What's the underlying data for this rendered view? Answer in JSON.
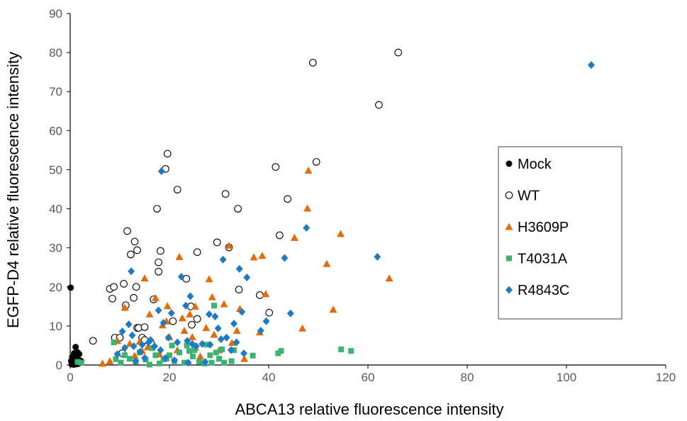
{
  "chart_data": {
    "type": "scatter",
    "xlabel": "ABCA13 relative fluorescence intensity",
    "ylabel": "EGFP-D4 relative fluorescence intensity",
    "xlim": [
      0,
      120
    ],
    "ylim": [
      0,
      90
    ],
    "xticks": [
      "0",
      "20",
      "40",
      "60",
      "80",
      "100",
      "120"
    ],
    "yticks": [
      "0",
      "10",
      "20",
      "30",
      "40",
      "50",
      "60",
      "70",
      "80",
      "90"
    ],
    "grid": false,
    "legend_position": "right",
    "series": [
      {
        "name": "Mock",
        "marker": "filled-circle",
        "color": "#000000",
        "points": [
          [
            0.1,
            19.8
          ],
          [
            0.2,
            1.0
          ],
          [
            0.3,
            0.2
          ],
          [
            0.4,
            2.0
          ],
          [
            0.5,
            0.6
          ],
          [
            0.6,
            1.2
          ],
          [
            0.7,
            0.1
          ],
          [
            0.8,
            3.0
          ],
          [
            0.9,
            0.4
          ],
          [
            1.0,
            1.6
          ],
          [
            1.1,
            4.6
          ],
          [
            1.2,
            0.2
          ],
          [
            1.3,
            2.4
          ],
          [
            1.4,
            0.8
          ],
          [
            1.5,
            3.2
          ],
          [
            1.6,
            0.3
          ],
          [
            1.7,
            1.4
          ],
          [
            1.8,
            2.8
          ],
          [
            2.0,
            0.6
          ],
          [
            2.2,
            1.0
          ]
        ]
      },
      {
        "name": "WT",
        "marker": "open-circle",
        "color": "#000000",
        "points": [
          [
            4.6,
            6.2
          ],
          [
            9.0,
            7.0
          ],
          [
            8.0,
            19.5
          ],
          [
            8.8,
            20.0
          ],
          [
            8.5,
            17.0
          ],
          [
            10.0,
            7.0
          ],
          [
            10.5,
            3.0
          ],
          [
            10.8,
            20.8
          ],
          [
            11.2,
            15.3
          ],
          [
            11.5,
            34.3
          ],
          [
            12.2,
            28.3
          ],
          [
            13.0,
            31.6
          ],
          [
            13.3,
            20.0
          ],
          [
            13.5,
            29.4
          ],
          [
            12.8,
            17.2
          ],
          [
            13.5,
            9.5
          ],
          [
            13.8,
            9.5
          ],
          [
            14.5,
            7.0
          ],
          [
            15.0,
            9.7
          ],
          [
            15.0,
            6.4
          ],
          [
            16.3,
            5.5
          ],
          [
            16.8,
            16.8
          ],
          [
            17.5,
            40.0
          ],
          [
            17.8,
            26.3
          ],
          [
            17.8,
            23.9
          ],
          [
            18.2,
            29.2
          ],
          [
            19.2,
            50.2
          ],
          [
            19.6,
            54.1
          ],
          [
            20.7,
            11.2
          ],
          [
            21.6,
            44.9
          ],
          [
            23.4,
            22.1
          ],
          [
            24.3,
            15.0
          ],
          [
            24.5,
            10.3
          ],
          [
            25.6,
            11.8
          ],
          [
            25.6,
            28.9
          ],
          [
            29.6,
            31.4
          ],
          [
            31.3,
            43.8
          ],
          [
            32.0,
            30.1
          ],
          [
            33.8,
            40.0
          ],
          [
            34.0,
            19.3
          ],
          [
            38.2,
            17.9
          ],
          [
            40.1,
            13.4
          ],
          [
            41.4,
            50.7
          ],
          [
            42.2,
            33.2
          ],
          [
            43.8,
            42.5
          ],
          [
            48.9,
            77.4
          ],
          [
            49.6,
            52.0
          ],
          [
            62.2,
            66.6
          ],
          [
            66.1,
            80.0
          ]
        ]
      },
      {
        "name": "H3609P",
        "marker": "triangle",
        "color": "#E36C09",
        "points": [
          [
            6.5,
            0.4
          ],
          [
            8.0,
            1.0
          ],
          [
            9.5,
            6.2
          ],
          [
            11.0,
            14.7
          ],
          [
            12.0,
            5.5
          ],
          [
            13.0,
            2.4
          ],
          [
            14.0,
            6.0
          ],
          [
            14.5,
            3.6
          ],
          [
            15.0,
            22.2
          ],
          [
            15.6,
            4.6
          ],
          [
            16.0,
            13.0
          ],
          [
            17.2,
            17.2
          ],
          [
            18.0,
            2.8
          ],
          [
            18.6,
            10.2
          ],
          [
            19.4,
            11.2
          ],
          [
            19.6,
            15.1
          ],
          [
            20.0,
            7.2
          ],
          [
            21.6,
            3.8
          ],
          [
            22.0,
            27.7
          ],
          [
            22.6,
            12.0
          ],
          [
            23.0,
            8.8
          ],
          [
            24.1,
            13.0
          ],
          [
            24.6,
            7.2
          ],
          [
            25.2,
            4.5
          ],
          [
            25.2,
            15.0
          ],
          [
            26.2,
            2.2
          ],
          [
            27.4,
            9.5
          ],
          [
            28.0,
            22.0
          ],
          [
            28.6,
            17.4
          ],
          [
            29.0,
            7.8
          ],
          [
            30.0,
            3.8
          ],
          [
            31.0,
            15.6
          ],
          [
            32.0,
            30.6
          ],
          [
            32.6,
            5.7
          ],
          [
            33.6,
            8.8
          ],
          [
            34.2,
            14.4
          ],
          [
            35.1,
            1.6
          ],
          [
            37.0,
            27.6
          ],
          [
            38.2,
            8.4
          ],
          [
            38.7,
            28.0
          ],
          [
            39.4,
            18.2
          ],
          [
            45.2,
            32.6
          ],
          [
            46.8,
            9.4
          ],
          [
            47.8,
            40.1
          ],
          [
            48.0,
            49.8
          ],
          [
            51.7,
            25.9
          ],
          [
            53.0,
            14.2
          ],
          [
            54.5,
            33.6
          ],
          [
            64.3,
            22.2
          ]
        ]
      },
      {
        "name": "T4031A",
        "marker": "square",
        "color": "#3CB371",
        "points": [
          [
            1.5,
            0.8
          ],
          [
            2.2,
            0.6
          ],
          [
            8.8,
            5.8
          ],
          [
            9.2,
            1.5
          ],
          [
            10.2,
            0.6
          ],
          [
            11.0,
            2.5
          ],
          [
            12.0,
            1.6
          ],
          [
            13.2,
            0.8
          ],
          [
            14.0,
            3.2
          ],
          [
            15.2,
            1.4
          ],
          [
            16.0,
            0.1
          ],
          [
            16.5,
            4.3
          ],
          [
            17.2,
            2.5
          ],
          [
            18.0,
            0.4
          ],
          [
            18.8,
            1.4
          ],
          [
            19.4,
            1.6
          ],
          [
            20.0,
            2.5
          ],
          [
            20.5,
            5.0
          ],
          [
            21.0,
            1.0
          ],
          [
            22.0,
            3.2
          ],
          [
            23.0,
            0.6
          ],
          [
            23.5,
            5.0
          ],
          [
            24.0,
            3.6
          ],
          [
            24.7,
            2.2
          ],
          [
            25.0,
            3.8
          ],
          [
            26.0,
            0.8
          ],
          [
            27.0,
            0.4
          ],
          [
            27.5,
            5.2
          ],
          [
            28.2,
            2.5
          ],
          [
            28.5,
            0.6
          ],
          [
            29.0,
            15.2
          ],
          [
            29.4,
            3.2
          ],
          [
            30.0,
            1.6
          ],
          [
            30.6,
            4.0
          ],
          [
            31.0,
            0.6
          ],
          [
            32.5,
            1.0
          ],
          [
            33.0,
            3.8
          ],
          [
            36.8,
            2.4
          ],
          [
            41.9,
            3.0
          ],
          [
            42.5,
            3.6
          ],
          [
            54.6,
            4.0
          ],
          [
            56.6,
            3.6
          ]
        ]
      },
      {
        "name": "R4843C",
        "marker": "diamond",
        "color": "#1F7BC1",
        "points": [
          [
            9.5,
            2.8
          ],
          [
            10.5,
            8.6
          ],
          [
            11.0,
            4.4
          ],
          [
            11.8,
            10.4
          ],
          [
            12.3,
            24.0
          ],
          [
            12.5,
            7.6
          ],
          [
            12.8,
            4.8
          ],
          [
            13.2,
            1.0
          ],
          [
            14.1,
            3.4
          ],
          [
            14.5,
            5.2
          ],
          [
            15.0,
            1.8
          ],
          [
            15.8,
            5.8
          ],
          [
            16.2,
            6.4
          ],
          [
            17.0,
            4.8
          ],
          [
            17.8,
            14.0
          ],
          [
            18.2,
            3.8
          ],
          [
            18.4,
            49.6
          ],
          [
            18.8,
            10.8
          ],
          [
            19.2,
            1.8
          ],
          [
            19.8,
            7.0
          ],
          [
            20.4,
            13.3
          ],
          [
            21.0,
            1.2
          ],
          [
            21.6,
            5.8
          ],
          [
            22.4,
            22.6
          ],
          [
            23.3,
            15.2
          ],
          [
            23.6,
            6.2
          ],
          [
            23.8,
            0.6
          ],
          [
            24.2,
            17.6
          ],
          [
            24.6,
            5.4
          ],
          [
            25.4,
            4.8
          ],
          [
            26.6,
            5.4
          ],
          [
            27.2,
            0.8
          ],
          [
            28.0,
            13.0
          ],
          [
            28.2,
            5.2
          ],
          [
            29.2,
            12.4
          ],
          [
            29.8,
            9.4
          ],
          [
            30.4,
            6.6
          ],
          [
            30.8,
            27.0
          ],
          [
            31.5,
            7.0
          ],
          [
            32.4,
            3.8
          ],
          [
            33.0,
            10.6
          ],
          [
            33.5,
            5.8
          ],
          [
            34.1,
            24.6
          ],
          [
            34.6,
            13.6
          ],
          [
            35.0,
            3.0
          ],
          [
            35.6,
            22.4
          ],
          [
            38.4,
            8.8
          ],
          [
            39.5,
            11.2
          ],
          [
            43.2,
            27.4
          ],
          [
            44.4,
            13.2
          ],
          [
            47.6,
            35.1
          ],
          [
            61.9,
            27.7
          ],
          [
            105.0,
            76.8
          ]
        ]
      }
    ]
  }
}
